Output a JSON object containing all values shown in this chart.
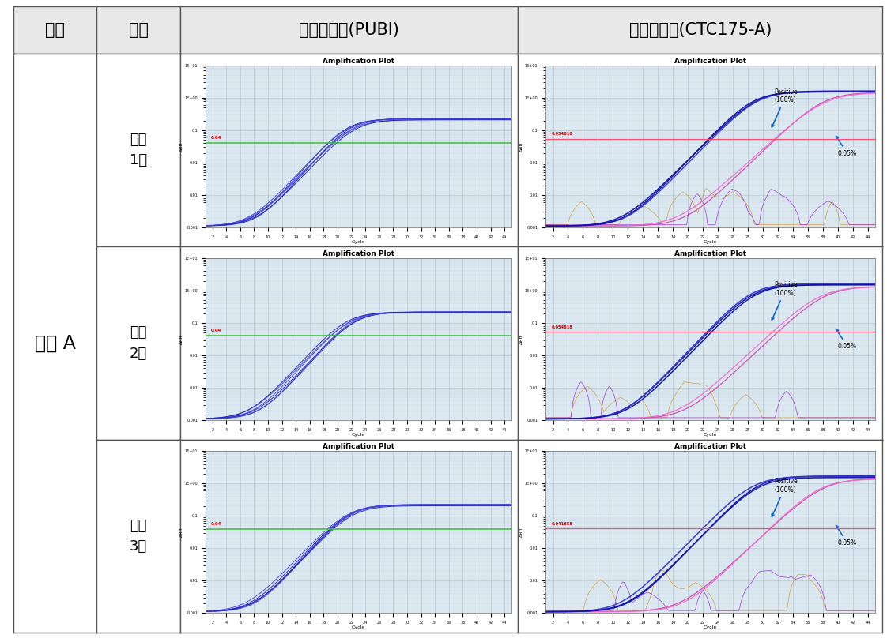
{
  "header_col1": "기관",
  "header_col2": "구분",
  "header_col3": "내재유전자(PUBI)",
  "header_col4": "구조유전자(CTC175-A)",
  "row_labels": [
    "일내\n1회",
    "일내\n2회",
    "일내\n3회"
  ],
  "institution": "기관 A",
  "pubi_threshold": 0.04,
  "pubi_threshold_label": "0.04",
  "ctc_thresholds": [
    0.054618,
    0.054618,
    0.041655
  ],
  "ctc_threshold_labels": [
    "0.054618",
    "0.054618",
    "0.041655"
  ],
  "header_bg": "#e8e8e8",
  "table_border": "#555555",
  "plot_bg": "#dce8f0",
  "grid_color": "#aabccc",
  "pubi_line_color": "#2222bb",
  "pubi_line_color2": "#4444dd",
  "pubi_threshold_color": "#44bb44",
  "pubi_threshold_text_color": "#cc0000",
  "ctc_positive_color": "#1111aa",
  "ctc_positive_color2": "#3333cc",
  "ctc_005_color": "#cc44aa",
  "ctc_005_color2": "#ee66cc",
  "ctc_noise_color1": "#cc8800",
  "ctc_noise_color2": "#8800cc",
  "ctc_threshold_line_color": "#ff4466",
  "ctc_threshold_text_color": "#cc0000",
  "annotation_arrow_color": "#1166cc",
  "font_size_header": 15,
  "font_size_label": 13,
  "font_size_institution": 17,
  "font_size_plot_title": 6.5,
  "font_size_axis_label": 4.5,
  "font_size_tick": 3.5,
  "font_size_annotation": 5.5,
  "font_size_threshold_label": 4.0
}
